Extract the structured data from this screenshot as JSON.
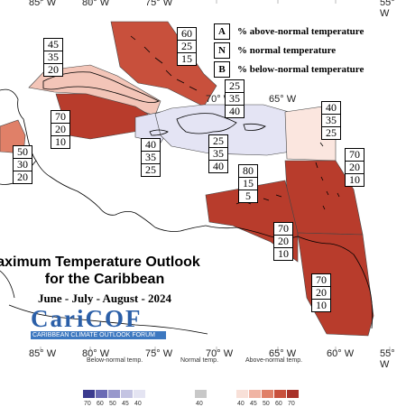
{
  "map": {
    "title_line1": "aximum Temperature Outlook",
    "title_line2": "for the Caribbean",
    "period": "June - July - August - 2024",
    "longitude_labels": [
      "85° W",
      "80° W",
      "75° W",
      "70° W",
      "65° W",
      "60° W",
      "55° W"
    ],
    "legend": [
      {
        "key": "A",
        "text": "% above-normal temperature"
      },
      {
        "key": "N",
        "text": "% normal temperature"
      },
      {
        "key": "B",
        "text": "% below-normal temperature"
      }
    ],
    "boxes": [
      {
        "region": "Bahamas",
        "values": [
          "60",
          "25",
          "15"
        ]
      },
      {
        "region": "Cuba",
        "values": [
          "45",
          "35",
          "20"
        ]
      },
      {
        "region": "Belize",
        "values": [
          "50",
          "30",
          "20"
        ]
      },
      {
        "region": "Cayman Islands",
        "values": [
          "70",
          "20",
          "10"
        ]
      },
      {
        "region": "Jamaica",
        "values": [
          "40",
          "35",
          "25"
        ]
      },
      {
        "region": "Turks and Caicos",
        "values": [
          "25",
          "35",
          "40"
        ]
      },
      {
        "region": "Hispaniola",
        "values": [
          "25",
          "35",
          "40"
        ]
      },
      {
        "region": "Northern Leeward Islands",
        "values": [
          "40",
          "35",
          "25"
        ]
      },
      {
        "region": "Lesser Antilles",
        "values": [
          "70",
          "20",
          "10"
        ]
      },
      {
        "region": "ABC Islands",
        "values": [
          "80",
          "15",
          "5"
        ]
      },
      {
        "region": "Trinidad and Tobago",
        "values": [
          "70",
          "20",
          "10"
        ]
      },
      {
        "region": "Guianas",
        "values": [
          "70",
          "20",
          "10"
        ]
      }
    ],
    "colors": {
      "above_70": "#b83c2c",
      "above_60": "#c8503c",
      "above_45": "#e8a08e",
      "above_40": "#f8e0d8",
      "below_40": "#e2e2f4",
      "land_outline": "#000000"
    }
  },
  "logo": {
    "name": "CariCOF",
    "subtitle": "CARIBBEAN CLIMATE OUTLOOK FORUM"
  },
  "colorbar": {
    "below_label": "Below-normal temp.",
    "normal_label": "Normal temp.",
    "above_label": "Above-normal temp.",
    "below_ticks": [
      "70",
      "60",
      "50",
      "45",
      "40"
    ],
    "normal_ticks": [
      "40"
    ],
    "above_ticks": [
      "40",
      "45",
      "50",
      "60",
      "70"
    ],
    "below_colors": [
      "#3b3b8f",
      "#6a6ab4",
      "#9898cc",
      "#c4c4e2",
      "#e4e4f2"
    ],
    "normal_color": "#c8c8c8",
    "above_colors": [
      "#f8e0d8",
      "#f0b4a4",
      "#e08068",
      "#c8503c",
      "#a8322a"
    ]
  }
}
